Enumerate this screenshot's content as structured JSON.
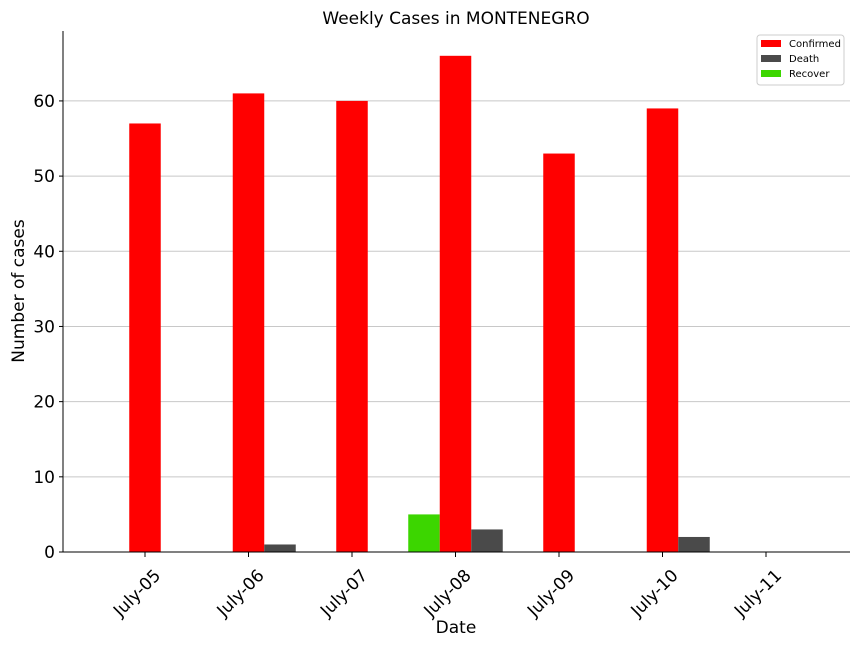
{
  "chart_data": {
    "type": "bar",
    "title": "Weekly Cases in MONTENEGRO",
    "xlabel": "Date",
    "ylabel": "Number of cases",
    "categories": [
      "July-05",
      "July-06",
      "July-07",
      "July-08",
      "July-09",
      "July-10",
      "July-11"
    ],
    "series": [
      {
        "name": "Recover",
        "color": "#3cd600",
        "values": [
          0,
          0,
          0,
          5,
          0,
          0,
          0
        ]
      },
      {
        "name": "Confirmed",
        "color": "#ff0000",
        "values": [
          57,
          61,
          60,
          66,
          53,
          59,
          0
        ]
      },
      {
        "name": "Death",
        "color": "#4a4a4a",
        "values": [
          0,
          1,
          0,
          3,
          0,
          2,
          0
        ]
      }
    ],
    "legend_order": [
      "Confirmed",
      "Death",
      "Recover"
    ],
    "yticks": [
      0,
      10,
      20,
      30,
      40,
      50,
      60
    ],
    "ylim": [
      0,
      69.3
    ],
    "grid": "horizontal",
    "legend_position": "top-right"
  }
}
